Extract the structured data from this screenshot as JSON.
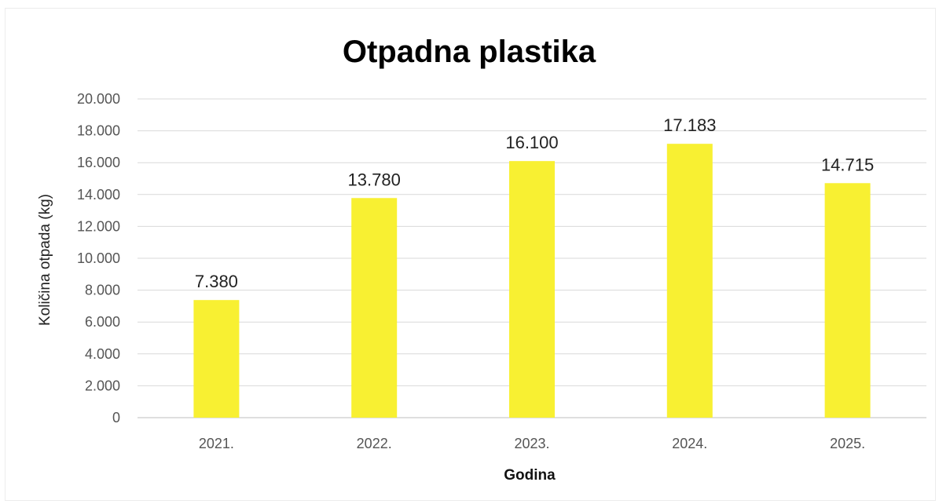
{
  "chart_data": {
    "type": "bar",
    "title": "Otpadna plastika",
    "xlabel": "Godina",
    "ylabel": "Količina otpada (kg)",
    "categories": [
      "2021.",
      "2022.",
      "2023.",
      "2024.",
      "2025."
    ],
    "values": [
      7380,
      13780,
      16100,
      17183,
      14715
    ],
    "value_labels": [
      "7.380",
      "13.780",
      "16.100",
      "17.183",
      "14.715"
    ],
    "ylim": [
      0,
      20000
    ],
    "yticks": [
      0,
      2000,
      4000,
      6000,
      8000,
      10000,
      12000,
      14000,
      16000,
      18000,
      20000
    ],
    "ytick_labels": [
      "0",
      "2.000",
      "4.000",
      "6.000",
      "8.000",
      "10.000",
      "12.000",
      "14.000",
      "16.000",
      "18.000",
      "20.000"
    ],
    "grid": true,
    "legend": "none",
    "bar_color": "#f8f032"
  }
}
